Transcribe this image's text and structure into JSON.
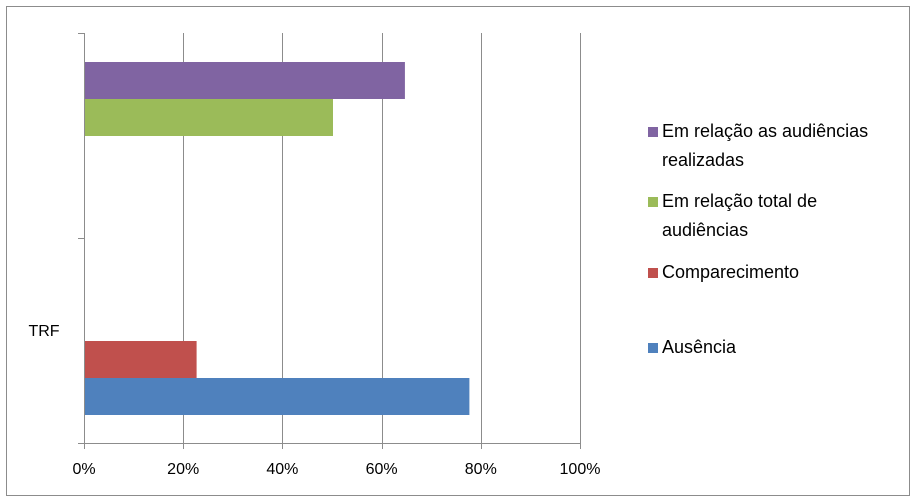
{
  "chart_data": {
    "type": "bar",
    "orientation": "horizontal",
    "title": "",
    "xlabel": "",
    "ylabel": "",
    "xlim": [
      0,
      100
    ],
    "x_ticks": [
      "0%",
      "20%",
      "40%",
      "60%",
      "80%",
      "100%"
    ],
    "x_tick_values": [
      0,
      20,
      40,
      60,
      80,
      100
    ],
    "grid": true,
    "legend_position": "right",
    "groups": [
      {
        "label": "",
        "series": [
          {
            "name": "Em relação as audiências realizadas",
            "value": 64.5,
            "color": "#8064A2"
          },
          {
            "name": "Em relação total de audiências",
            "value": 50,
            "color": "#9BBB59"
          }
        ]
      },
      {
        "label": "TRF",
        "series": [
          {
            "name": "Comparecimento",
            "value": 22.5,
            "color": "#C0504D"
          },
          {
            "name": "Ausência",
            "value": 77.5,
            "color": "#4F81BD"
          }
        ]
      }
    ],
    "legend": [
      {
        "name": "Em relação as audiências realizadas",
        "lines": [
          "Em relação as audiências",
          "realizadas"
        ],
        "color": "#8064A2"
      },
      {
        "name": "Em relação total de audiências",
        "lines": [
          "Em relação total de",
          "audiências"
        ],
        "color": "#9BBB59"
      },
      {
        "name": "Comparecimento",
        "lines": [
          "Comparecimento"
        ],
        "color": "#C0504D"
      },
      {
        "name": "Ausência",
        "lines": [
          "Ausência"
        ],
        "color": "#4F81BD"
      }
    ]
  }
}
